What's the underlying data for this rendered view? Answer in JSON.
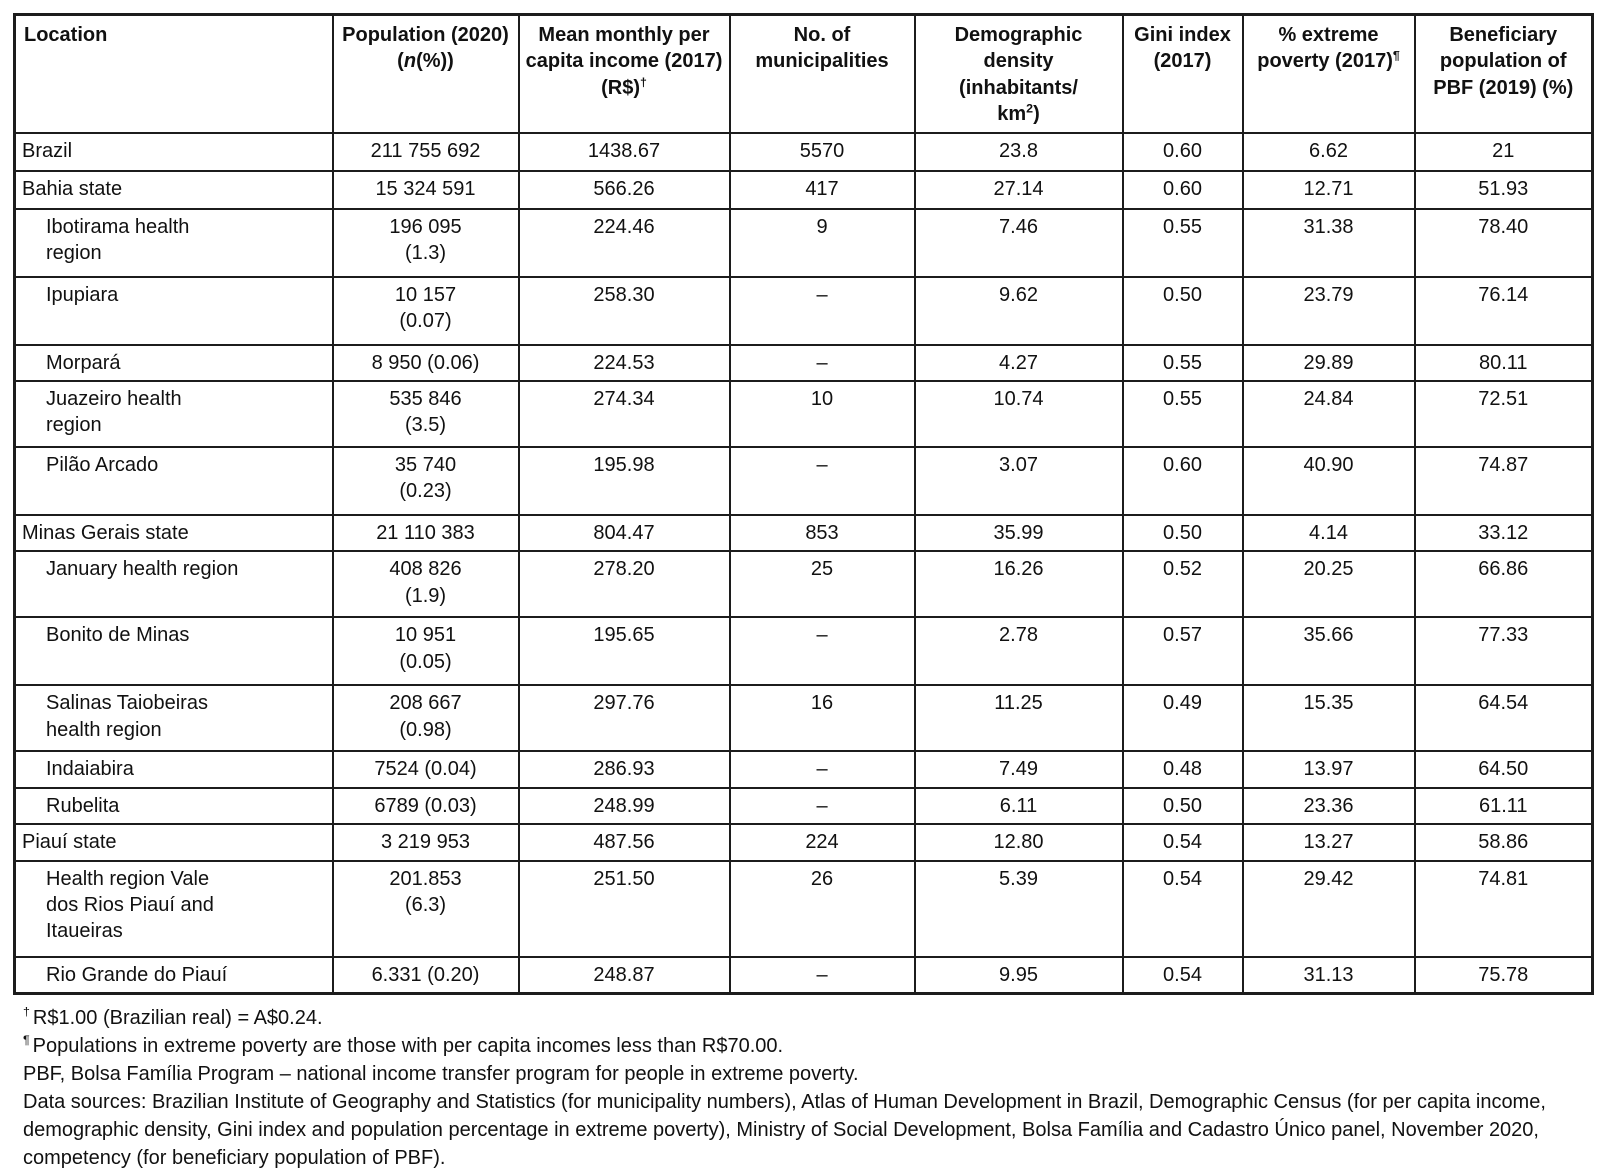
{
  "table": {
    "columns": [
      {
        "id": "location",
        "label": "Location",
        "align": "left",
        "label_parts": [
          {
            "t": "Location"
          }
        ]
      },
      {
        "id": "population",
        "label_parts": [
          {
            "t": "Population (2020) ("
          },
          {
            "t": "n",
            "italic": true
          },
          {
            "t": "(%))"
          }
        ]
      },
      {
        "id": "income",
        "label_parts": [
          {
            "t": "Mean monthly per capita income (2017) (R$)"
          },
          {
            "t": "†",
            "sup": true
          }
        ]
      },
      {
        "id": "municipalities",
        "label_parts": [
          {
            "t": "No. of municipalities"
          }
        ]
      },
      {
        "id": "density",
        "label_parts": [
          {
            "t": "Demographic density (inhabitants/\n"
          },
          {
            "t": "km"
          },
          {
            "t": "2",
            "sup": true
          },
          {
            "t": ")"
          }
        ]
      },
      {
        "id": "gini",
        "label_parts": [
          {
            "t": "Gini index (2017)"
          }
        ]
      },
      {
        "id": "poverty",
        "label_parts": [
          {
            "t": "% extreme poverty (2017)"
          },
          {
            "t": "¶",
            "sup": true
          }
        ]
      },
      {
        "id": "pbf",
        "label_parts": [
          {
            "t": "Beneficiary population of PBF (2019) (%)"
          }
        ]
      }
    ],
    "rows": [
      {
        "location": "Brazil",
        "indent": 0,
        "population": "211 755 692",
        "income": "1438.67",
        "municipalities": "5570",
        "density": "23.8",
        "gini": "0.60",
        "poverty": "6.62",
        "pbf": "21"
      },
      {
        "location": "Bahia state",
        "indent": 0,
        "population": "15 324 591",
        "income": "566.26",
        "municipalities": "417",
        "density": "27.14",
        "gini": "0.60",
        "poverty": "12.71",
        "pbf": "51.93"
      },
      {
        "location": "Ibotirama health\nregion",
        "indent": 1,
        "population": "196 095\n(1.3)",
        "income": "224.46",
        "municipalities": "9",
        "density": "7.46",
        "gini": "0.55",
        "poverty": "31.38",
        "pbf": "78.40"
      },
      {
        "location": "Ipupiara",
        "indent": 1,
        "population": "10 157\n(0.07)",
        "income": "258.30",
        "municipalities": "–",
        "density": "9.62",
        "gini": "0.50",
        "poverty": "23.79",
        "pbf": "76.14"
      },
      {
        "location": "Morpará",
        "indent": 1,
        "population": "8 950 (0.06)",
        "income": "224.53",
        "municipalities": "–",
        "density": "4.27",
        "gini": "0.55",
        "poverty": "29.89",
        "pbf": "80.11"
      },
      {
        "location": "Juazeiro health\nregion",
        "indent": 1,
        "population": "535 846\n(3.5)",
        "income": "274.34",
        "municipalities": "10",
        "density": "10.74",
        "gini": "0.55",
        "poverty": "24.84",
        "pbf": "72.51"
      },
      {
        "location": "Pilão Arcado",
        "indent": 1,
        "population": "35 740\n(0.23)",
        "income": "195.98",
        "municipalities": "–",
        "density": "3.07",
        "gini": "0.60",
        "poverty": "40.90",
        "pbf": "74.87"
      },
      {
        "location": "Minas Gerais state",
        "indent": 0,
        "population": "21 110 383",
        "income": "804.47",
        "municipalities": "853",
        "density": "35.99",
        "gini": "0.50",
        "poverty": "4.14",
        "pbf": "33.12"
      },
      {
        "location": "January health region",
        "indent": 1,
        "population": "408 826\n(1.9)",
        "income": "278.20",
        "municipalities": "25",
        "density": "16.26",
        "gini": "0.52",
        "poverty": "20.25",
        "pbf": "66.86"
      },
      {
        "location": "Bonito de Minas",
        "indent": 1,
        "population": "10 951\n(0.05)",
        "income": "195.65",
        "municipalities": "–",
        "density": "2.78",
        "gini": "0.57",
        "poverty": "35.66",
        "pbf": "77.33"
      },
      {
        "location": "Salinas Taiobeiras\nhealth region",
        "indent": 1,
        "population": "208 667\n(0.98)",
        "income": "297.76",
        "municipalities": "16",
        "density": "11.25",
        "gini": "0.49",
        "poverty": "15.35",
        "pbf": "64.54"
      },
      {
        "location": "Indaiabira",
        "indent": 1,
        "population": "7524 (0.04)",
        "income": "286.93",
        "municipalities": "–",
        "density": "7.49",
        "gini": "0.48",
        "poverty": "13.97",
        "pbf": "64.50"
      },
      {
        "location": "Rubelita",
        "indent": 1,
        "population": "6789 (0.03)",
        "income": "248.99",
        "municipalities": "–",
        "density": "6.11",
        "gini": "0.50",
        "poverty": "23.36",
        "pbf": "61.11"
      },
      {
        "location": "Piauí state",
        "indent": 0,
        "population": "3 219 953",
        "income": "487.56",
        "municipalities": "224",
        "density": "12.80",
        "gini": "0.54",
        "poverty": "13.27",
        "pbf": "58.86"
      },
      {
        "location": "Health region Vale\ndos Rios Piauí and\nItaueiras",
        "indent": 1,
        "population": "201.853\n(6.3)",
        "income": "251.50",
        "municipalities": "26",
        "density": "5.39",
        "gini": "0.54",
        "poverty": "29.42",
        "pbf": "74.81"
      },
      {
        "location": "Rio Grande do Piauí",
        "indent": 1,
        "population": "6.331 (0.20)",
        "income": "248.87",
        "municipalities": "–",
        "density": "9.95",
        "gini": "0.54",
        "poverty": "31.13",
        "pbf": "75.78"
      }
    ]
  },
  "footnotes": [
    {
      "id": "dagger",
      "marker": "†",
      "text": "R$1.00 (Brazilian real) = A$0.24."
    },
    {
      "id": "pilcrow",
      "marker": "¶",
      "text": "Populations in extreme poverty are those with per capita incomes less than R$70.00."
    },
    {
      "id": "pbf-definition",
      "marker": "",
      "text": "PBF, Bolsa Família Program – national income transfer program for people in extreme poverty."
    },
    {
      "id": "data-sources",
      "marker": "",
      "text": "Data sources: Brazilian Institute of Geography and Statistics (for municipality numbers), Atlas of Human Development in Brazil, Demographic Census (for per capita income, demographic density, Gini index and population percentage in extreme poverty), Ministry of Social Development, Bolsa Família and Cadastro Único panel, November 2020, competency (for beneficiary population of PBF)."
    }
  ]
}
